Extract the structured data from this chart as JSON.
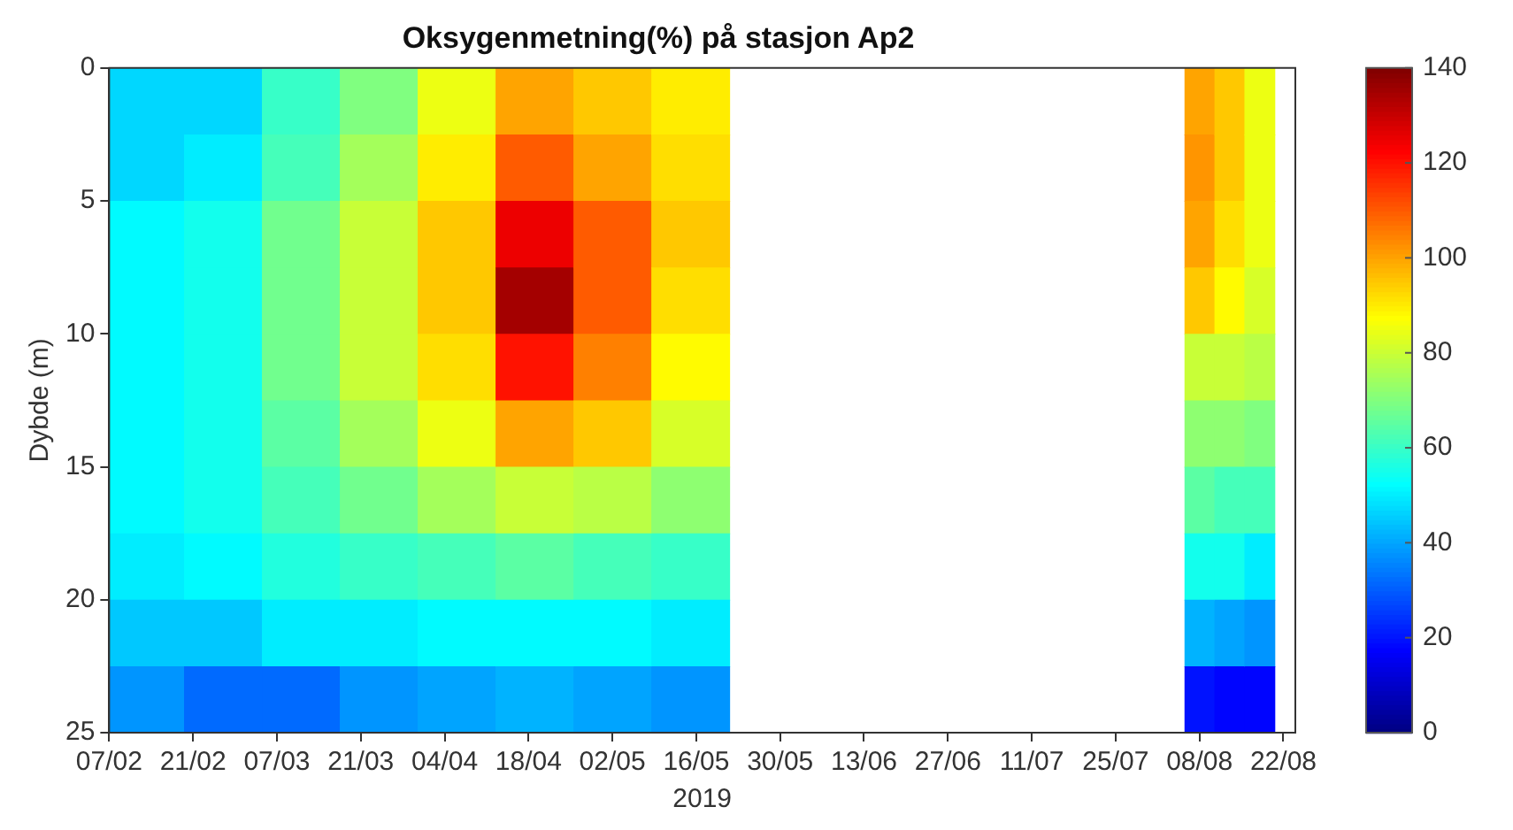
{
  "chart_data": {
    "type": "heatmap",
    "title": "Oksygenmetning(%) på stasjon Ap2",
    "xlabel": "2019",
    "ylabel": "Dybde (m)",
    "x": [
      "2019-02-13",
      "2019-02-26",
      "2019-03-11",
      "2019-03-24",
      "2019-04-06",
      "2019-04-19",
      "2019-05-02",
      "2019-05-15",
      "2019-05-28",
      "2019-08-03",
      "2019-08-08",
      "2019-08-13",
      "2019-08-18"
    ],
    "cells": [
      [
        47,
        47,
        60,
        70,
        85,
        100,
        95,
        90,
        null,
        null,
        100,
        95,
        85
      ],
      [
        47,
        50,
        62,
        75,
        90,
        110,
        100,
        92,
        null,
        null,
        102,
        95,
        85
      ],
      [
        52,
        55,
        68,
        80,
        95,
        125,
        110,
        95,
        null,
        null,
        100,
        92,
        85
      ],
      [
        52,
        55,
        68,
        80,
        95,
        135,
        110,
        92,
        null,
        null,
        95,
        88,
        82
      ],
      [
        52,
        55,
        68,
        80,
        92,
        120,
        105,
        88,
        null,
        null,
        80,
        80,
        78
      ],
      [
        52,
        55,
        65,
        75,
        85,
        100,
        95,
        82,
        null,
        null,
        72,
        72,
        70
      ],
      [
        52,
        55,
        62,
        68,
        75,
        80,
        78,
        72,
        null,
        null,
        65,
        62,
        62
      ],
      [
        50,
        52,
        57,
        60,
        62,
        65,
        62,
        60,
        null,
        null,
        55,
        55,
        50
      ],
      [
        45,
        45,
        50,
        50,
        52,
        52,
        52,
        50,
        null,
        null,
        42,
        40,
        38
      ],
      [
        38,
        32,
        32,
        38,
        40,
        42,
        40,
        38,
        null,
        null,
        20,
        18,
        18
      ]
    ],
    "xlim": [
      "2019-02-07",
      "2019-08-24"
    ],
    "xticks": [
      {
        "value": "2019-02-07",
        "label": "07/02"
      },
      {
        "value": "2019-02-21",
        "label": "21/02"
      },
      {
        "value": "2019-03-07",
        "label": "07/03"
      },
      {
        "value": "2019-03-21",
        "label": "21/03"
      },
      {
        "value": "2019-04-04",
        "label": "04/04"
      },
      {
        "value": "2019-04-18",
        "label": "18/04"
      },
      {
        "value": "2019-05-02",
        "label": "02/05"
      },
      {
        "value": "2019-05-16",
        "label": "16/05"
      },
      {
        "value": "2019-05-30",
        "label": "30/05"
      },
      {
        "value": "2019-06-13",
        "label": "13/06"
      },
      {
        "value": "2019-06-27",
        "label": "27/06"
      },
      {
        "value": "2019-07-11",
        "label": "11/07"
      },
      {
        "value": "2019-07-25",
        "label": "25/07"
      },
      {
        "value": "2019-08-08",
        "label": "08/08"
      },
      {
        "value": "2019-08-22",
        "label": "22/08"
      }
    ],
    "ylim": [
      25,
      0
    ],
    "yticks": [
      0,
      5,
      10,
      15,
      20,
      25
    ],
    "clim": [
      0,
      140
    ],
    "cticks": [
      0,
      20,
      40,
      60,
      80,
      100,
      120,
      140
    ]
  }
}
